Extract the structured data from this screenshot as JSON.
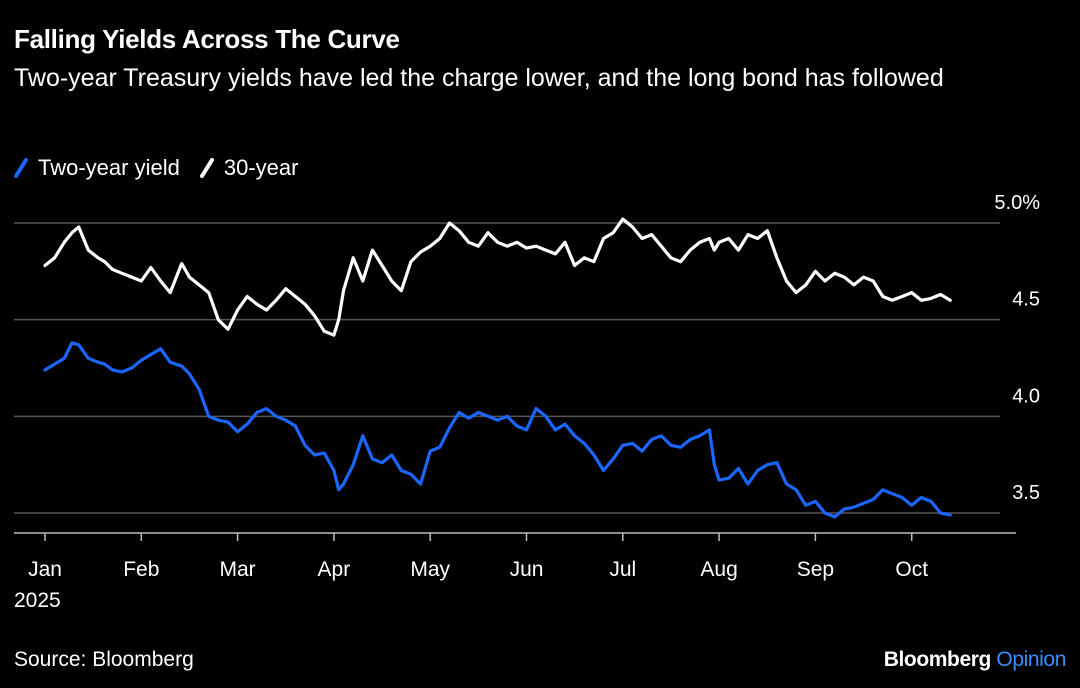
{
  "title": "Falling Yields Across The Curve",
  "subtitle": "Two-year Treasury yields have led the charge lower, and the long bond has followed",
  "source": "Source: Bloomberg",
  "brand": {
    "name": "Bloomberg",
    "suffix": "Opinion"
  },
  "colors": {
    "background": "#000000",
    "two_year": "#1a66ff",
    "thirty_year": "#ffffff",
    "grid": "#555555",
    "brand_accent": "#3a8dff"
  },
  "chart_data": {
    "type": "line",
    "title": "Falling Yields Across The Curve",
    "ylim": [
      3.47,
      5.05
    ],
    "yticks": [
      3.5,
      4.0,
      4.5,
      5.0
    ],
    "ytick_labels": [
      "3.5",
      "4.0",
      "4.5",
      "5.0%"
    ],
    "xlim": [
      0,
      9.85
    ],
    "xticks": [
      0,
      1,
      2,
      3,
      4,
      5,
      6,
      7,
      8,
      9
    ],
    "xtick_labels": [
      "Jan",
      "Feb",
      "Mar",
      "Apr",
      "May",
      "Jun",
      "Jul",
      "Aug",
      "Sep",
      "Oct"
    ],
    "xtick_sublabel": "2025",
    "grid": true,
    "legend_position": "top-left",
    "series": [
      {
        "name": "Two-year yield",
        "color": "#1a66ff",
        "x": [
          0.0,
          0.1,
          0.2,
          0.28,
          0.35,
          0.45,
          0.55,
          0.62,
          0.7,
          0.8,
          0.9,
          1.0,
          1.1,
          1.2,
          1.3,
          1.42,
          1.5,
          1.6,
          1.7,
          1.8,
          1.9,
          2.0,
          2.1,
          2.2,
          2.3,
          2.4,
          2.5,
          2.6,
          2.7,
          2.8,
          2.9,
          3.0,
          3.05,
          3.1,
          3.2,
          3.3,
          3.4,
          3.5,
          3.6,
          3.7,
          3.8,
          3.9,
          4.0,
          4.1,
          4.2,
          4.3,
          4.4,
          4.5,
          4.6,
          4.7,
          4.8,
          4.9,
          5.0,
          5.1,
          5.2,
          5.3,
          5.4,
          5.5,
          5.6,
          5.7,
          5.8,
          5.9,
          6.0,
          6.1,
          6.2,
          6.3,
          6.4,
          6.5,
          6.6,
          6.7,
          6.8,
          6.9,
          6.95,
          7.0,
          7.1,
          7.2,
          7.3,
          7.4,
          7.5,
          7.6,
          7.7,
          7.8,
          7.9,
          8.0,
          8.1,
          8.2,
          8.3,
          8.4,
          8.5,
          8.6,
          8.7,
          8.8,
          8.9,
          9.0,
          9.1,
          9.2,
          9.3,
          9.4
        ],
        "y": [
          4.24,
          4.27,
          4.3,
          4.38,
          4.37,
          4.3,
          4.28,
          4.27,
          4.24,
          4.23,
          4.25,
          4.29,
          4.32,
          4.35,
          4.28,
          4.26,
          4.22,
          4.14,
          4.0,
          3.98,
          3.97,
          3.92,
          3.96,
          4.02,
          4.04,
          4.0,
          3.98,
          3.95,
          3.85,
          3.8,
          3.81,
          3.72,
          3.62,
          3.65,
          3.75,
          3.9,
          3.78,
          3.76,
          3.8,
          3.72,
          3.7,
          3.65,
          3.82,
          3.84,
          3.94,
          4.02,
          3.99,
          4.02,
          4.0,
          3.98,
          4.0,
          3.95,
          3.93,
          4.04,
          4.0,
          3.93,
          3.96,
          3.9,
          3.86,
          3.8,
          3.72,
          3.78,
          3.85,
          3.86,
          3.82,
          3.88,
          3.9,
          3.85,
          3.84,
          3.88,
          3.9,
          3.93,
          3.75,
          3.67,
          3.68,
          3.73,
          3.65,
          3.72,
          3.75,
          3.76,
          3.65,
          3.62,
          3.54,
          3.56,
          3.5,
          3.48,
          3.52,
          3.53,
          3.55,
          3.57,
          3.62,
          3.6,
          3.58,
          3.54,
          3.58,
          3.56,
          3.5,
          3.49
        ]
      },
      {
        "name": "30-year",
        "color": "#ffffff",
        "x": [
          0.0,
          0.1,
          0.2,
          0.28,
          0.35,
          0.45,
          0.55,
          0.62,
          0.7,
          0.8,
          0.9,
          1.0,
          1.1,
          1.2,
          1.3,
          1.42,
          1.5,
          1.6,
          1.7,
          1.8,
          1.9,
          2.0,
          2.1,
          2.2,
          2.3,
          2.4,
          2.5,
          2.6,
          2.7,
          2.8,
          2.9,
          3.0,
          3.05,
          3.1,
          3.2,
          3.3,
          3.4,
          3.5,
          3.6,
          3.7,
          3.8,
          3.9,
          4.0,
          4.1,
          4.2,
          4.3,
          4.4,
          4.5,
          4.6,
          4.7,
          4.8,
          4.9,
          5.0,
          5.1,
          5.2,
          5.3,
          5.4,
          5.5,
          5.6,
          5.7,
          5.8,
          5.9,
          6.0,
          6.1,
          6.2,
          6.3,
          6.4,
          6.5,
          6.6,
          6.7,
          6.8,
          6.9,
          6.95,
          7.0,
          7.1,
          7.2,
          7.3,
          7.4,
          7.5,
          7.6,
          7.7,
          7.8,
          7.9,
          8.0,
          8.1,
          8.2,
          8.3,
          8.4,
          8.5,
          8.6,
          8.7,
          8.8,
          8.9,
          9.0,
          9.1,
          9.2,
          9.3,
          9.4
        ],
        "y": [
          4.78,
          4.82,
          4.9,
          4.95,
          4.98,
          4.86,
          4.82,
          4.8,
          4.76,
          4.74,
          4.72,
          4.7,
          4.77,
          4.7,
          4.64,
          4.79,
          4.72,
          4.68,
          4.64,
          4.5,
          4.45,
          4.55,
          4.62,
          4.58,
          4.55,
          4.6,
          4.66,
          4.62,
          4.58,
          4.52,
          4.44,
          4.42,
          4.5,
          4.65,
          4.82,
          4.7,
          4.86,
          4.78,
          4.7,
          4.65,
          4.8,
          4.85,
          4.88,
          4.92,
          5.0,
          4.96,
          4.9,
          4.88,
          4.95,
          4.9,
          4.88,
          4.9,
          4.87,
          4.88,
          4.86,
          4.84,
          4.9,
          4.78,
          4.82,
          4.8,
          4.92,
          4.95,
          5.02,
          4.98,
          4.92,
          4.94,
          4.88,
          4.82,
          4.8,
          4.86,
          4.9,
          4.92,
          4.86,
          4.9,
          4.92,
          4.86,
          4.94,
          4.92,
          4.96,
          4.82,
          4.7,
          4.64,
          4.68,
          4.75,
          4.7,
          4.74,
          4.72,
          4.68,
          4.72,
          4.7,
          4.62,
          4.6,
          4.62,
          4.64,
          4.6,
          4.61,
          4.63,
          4.6
        ]
      }
    ]
  }
}
